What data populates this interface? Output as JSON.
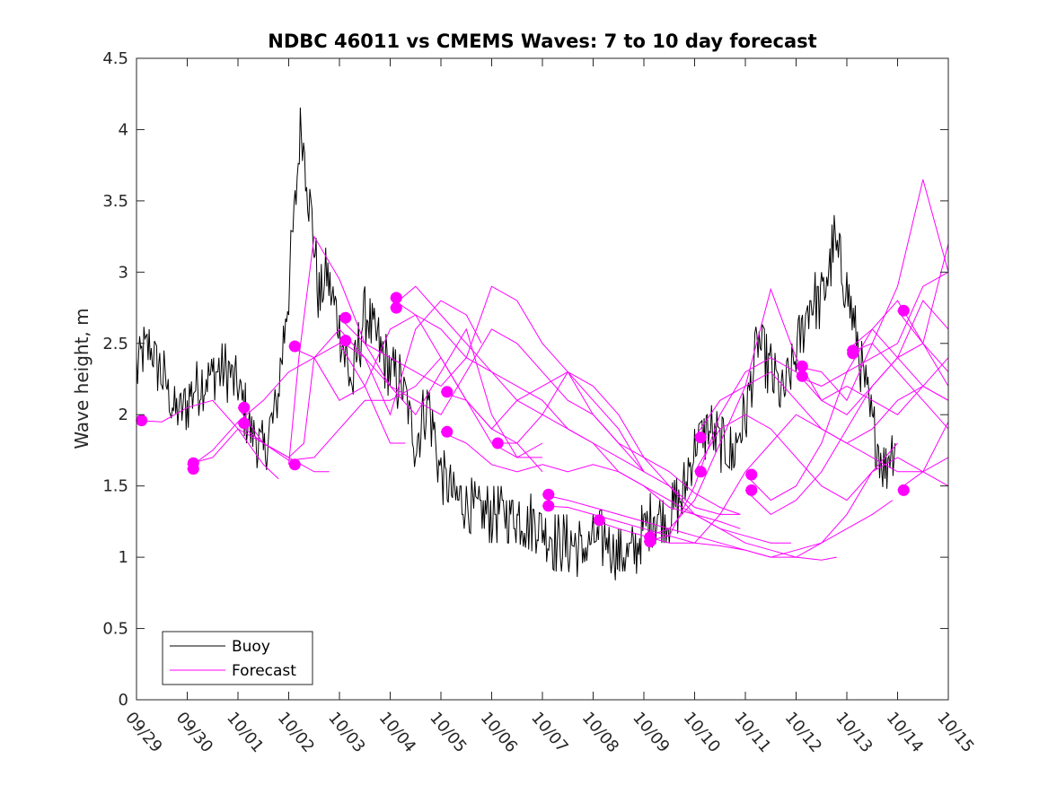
{
  "chart_data": {
    "type": "line",
    "title": "NDBC 46011 vs CMEMS Waves: 7 to 10 day forecast",
    "xlabel": "",
    "ylabel": "Wave height, m",
    "xlim": [
      0,
      16
    ],
    "ylim": [
      0,
      4.5
    ],
    "x_tick_labels": [
      "09/29",
      "09/30",
      "10/01",
      "10/02",
      "10/03",
      "10/04",
      "10/05",
      "10/06",
      "10/07",
      "10/08",
      "10/09",
      "10/10",
      "10/11",
      "10/12",
      "10/13",
      "10/14",
      "10/15"
    ],
    "y_tick_labels": [
      "0",
      "0.5",
      "1",
      "1.5",
      "2",
      "2.5",
      "3",
      "3.5",
      "4",
      "4.5"
    ],
    "y_ticks": [
      0,
      0.5,
      1,
      1.5,
      2,
      2.5,
      3,
      3.5,
      4,
      4.5
    ],
    "legend": {
      "position": "bottom-left",
      "entries": [
        "Buoy",
        "Forecast"
      ]
    },
    "colors": {
      "buoy": "#000000",
      "forecast": "#ff00ff"
    },
    "buoy": {
      "name": "Buoy",
      "x": [
        0.0,
        0.25,
        0.5,
        0.75,
        1.0,
        1.25,
        1.5,
        1.75,
        2.0,
        2.25,
        2.5,
        2.75,
        3.0,
        3.25,
        3.5,
        3.6,
        3.75,
        4.0,
        4.25,
        4.5,
        4.75,
        5.0,
        5.25,
        5.5,
        5.75,
        6.0,
        6.25,
        6.5,
        6.75,
        7.0,
        7.25,
        7.5,
        7.75,
        8.0,
        8.25,
        8.5,
        8.75,
        9.0,
        9.25,
        9.5,
        9.75,
        10.0,
        10.25,
        10.5,
        10.75,
        11.0,
        11.25,
        11.5,
        11.75,
        12.0,
        12.25,
        12.5,
        12.75,
        13.0,
        13.25,
        13.5,
        13.75,
        14.0,
        14.25,
        14.5,
        14.75,
        14.95
      ],
      "y": [
        2.3,
        2.5,
        2.3,
        2.0,
        2.1,
        2.2,
        2.3,
        2.3,
        2.2,
        1.9,
        1.75,
        2.0,
        2.9,
        4.05,
        3.2,
        2.8,
        3.0,
        2.6,
        2.2,
        2.7,
        2.5,
        2.3,
        2.2,
        1.8,
        2.1,
        1.6,
        1.4,
        1.4,
        1.3,
        1.3,
        1.3,
        1.3,
        1.25,
        1.2,
        1.1,
        1.1,
        1.05,
        1.1,
        1.15,
        1.0,
        1.0,
        1.2,
        1.3,
        1.3,
        1.4,
        1.8,
        1.9,
        1.8,
        1.7,
        2.0,
        2.5,
        2.3,
        2.1,
        2.4,
        2.8,
        2.8,
        3.2,
        2.9,
        2.4,
        1.9,
        1.65,
        1.8
      ]
    },
    "forecast": {
      "name": "Forecast",
      "series": [
        {
          "x": [
            0.0,
            0.5,
            1.0,
            1.5,
            2.0,
            2.5,
            2.8
          ],
          "y": [
            1.96,
            1.95,
            2.05,
            2.1,
            1.9,
            1.65,
            1.55
          ]
        },
        {
          "x": [
            1.0,
            1.5,
            2.0,
            2.5,
            3.0,
            3.5,
            3.8
          ],
          "y": [
            1.65,
            1.7,
            1.9,
            1.8,
            1.7,
            1.6,
            1.6
          ]
        },
        {
          "x": [
            1.0,
            1.5,
            2.0,
            2.5,
            3.0,
            3.5,
            4.0,
            4.5,
            5.0,
            5.3
          ],
          "y": [
            1.62,
            1.75,
            1.95,
            2.1,
            2.3,
            2.4,
            2.5,
            2.2,
            1.8,
            1.8
          ]
        },
        {
          "x": [
            2.0,
            2.5,
            3.0,
            3.3,
            3.5,
            4.0,
            4.5,
            5.0,
            5.5,
            6.0,
            6.5,
            6.8
          ],
          "y": [
            2.05,
            1.8,
            1.7,
            1.8,
            2.4,
            2.6,
            2.4,
            2.0,
            2.6,
            2.8,
            2.7,
            2.5
          ]
        },
        {
          "x": [
            2.0,
            2.5,
            3.0,
            3.5,
            4.0,
            4.5,
            5.0,
            5.5,
            6.0,
            6.5,
            7.0,
            7.5,
            8.0
          ],
          "y": [
            1.94,
            1.8,
            1.68,
            1.7,
            1.9,
            2.1,
            2.1,
            2.2,
            2.4,
            2.1,
            1.9,
            1.8,
            1.6
          ]
        },
        {
          "x": [
            3.0,
            3.2,
            3.5,
            4.0,
            4.5,
            5.0,
            5.5,
            6.0,
            6.5,
            7.0,
            7.5,
            8.0
          ],
          "y": [
            1.65,
            2.4,
            3.25,
            2.95,
            2.5,
            2.2,
            2.0,
            2.3,
            2.6,
            2.0,
            1.7,
            1.7
          ]
        },
        {
          "x": [
            3.0,
            3.5,
            4.0,
            4.5,
            5.0,
            5.5,
            6.0,
            6.5,
            7.0,
            7.5,
            8.0
          ],
          "y": [
            2.48,
            2.4,
            2.1,
            2.2,
            2.6,
            2.7,
            2.4,
            2.1,
            1.8,
            1.7,
            1.8
          ]
        },
        {
          "x": [
            4.0,
            4.5,
            5.0,
            5.5,
            6.0,
            6.5,
            7.0,
            7.5,
            8.0,
            8.5,
            9.0,
            9.5,
            10.0
          ],
          "y": [
            2.68,
            2.5,
            2.4,
            2.3,
            2.2,
            2.4,
            2.9,
            2.8,
            2.5,
            2.3,
            2.1,
            1.9,
            1.6
          ]
        },
        {
          "x": [
            4.0,
            4.5,
            5.0,
            5.5,
            6.0,
            6.5,
            7.0,
            7.5,
            8.0,
            8.5,
            9.0,
            9.5,
            10.0
          ],
          "y": [
            2.52,
            2.4,
            2.2,
            2.1,
            2.0,
            2.3,
            2.6,
            2.5,
            2.3,
            2.1,
            2.0,
            1.8,
            1.6
          ]
        },
        {
          "x": [
            5.0,
            5.5,
            6.0,
            6.5,
            7.0,
            7.5,
            8.0,
            8.5,
            9.0,
            9.5,
            10.0,
            10.5,
            11.0,
            11.5,
            11.9
          ],
          "y": [
            2.82,
            2.7,
            2.6,
            2.4,
            2.3,
            2.2,
            2.1,
            1.9,
            1.8,
            1.7,
            1.6,
            1.5,
            1.35,
            1.3,
            1.3
          ]
        },
        {
          "x": [
            5.0,
            5.5,
            6.0,
            6.5,
            7.0,
            7.5,
            8.0,
            8.5,
            9.0,
            9.5,
            10.0,
            10.5,
            11.0,
            11.5,
            11.9
          ],
          "y": [
            2.75,
            2.9,
            2.7,
            2.5,
            2.3,
            2.1,
            2.0,
            1.9,
            1.8,
            1.6,
            1.5,
            1.4,
            1.3,
            1.25,
            1.2
          ]
        },
        {
          "x": [
            6.0,
            6.5,
            7.0,
            7.5,
            8.0,
            8.5,
            9.0,
            9.5,
            10.0,
            10.5,
            11.0,
            11.5,
            11.9
          ],
          "y": [
            2.16,
            2.1,
            1.9,
            2.1,
            2.2,
            2.3,
            2.0,
            1.8,
            1.7,
            1.6,
            1.45,
            1.35,
            1.3
          ]
        },
        {
          "x": [
            6.0,
            6.5,
            7.0,
            7.5,
            8.0,
            8.5,
            9.0,
            9.5,
            10.0,
            10.5,
            11.0,
            11.5,
            12.0,
            12.5,
            12.9
          ],
          "y": [
            1.88,
            1.8,
            1.65,
            1.6,
            1.65,
            1.6,
            1.65,
            1.6,
            1.5,
            1.35,
            1.3,
            1.2,
            1.15,
            1.1,
            1.1
          ]
        },
        {
          "x": [
            7.0,
            7.5,
            8.0,
            8.5,
            9.0,
            9.5,
            10.0,
            10.5,
            11.0,
            11.5,
            12.0,
            12.5,
            13.0,
            13.5,
            13.8
          ],
          "y": [
            1.8,
            1.8,
            2.0,
            2.3,
            2.2,
            2.0,
            1.7,
            1.5,
            1.3,
            1.2,
            1.1,
            1.05,
            1.0,
            0.98,
            1.0
          ]
        },
        {
          "x": [
            8.0,
            8.5,
            9.0,
            9.5,
            10.0,
            10.5,
            11.0,
            11.5,
            12.0,
            12.5,
            13.0,
            13.5,
            14.0,
            14.5,
            14.9
          ],
          "y": [
            1.44,
            1.4,
            1.35,
            1.3,
            1.25,
            1.2,
            1.15,
            1.1,
            1.05,
            1.0,
            1.05,
            1.1,
            1.2,
            1.3,
            1.4
          ]
        },
        {
          "x": [
            8.0,
            8.5,
            9.0,
            9.5,
            10.0,
            10.5,
            11.0,
            11.5,
            12.0,
            12.5,
            13.0,
            13.5,
            14.0,
            14.5,
            15.0
          ],
          "y": [
            1.36,
            1.35,
            1.3,
            1.25,
            1.2,
            1.15,
            1.1,
            1.08,
            1.05,
            1.0,
            1.0,
            1.1,
            1.3,
            1.6,
            1.8
          ]
        },
        {
          "x": [
            9.0,
            9.5,
            10.0,
            10.5,
            11.0,
            11.5,
            12.0,
            12.5,
            13.0,
            13.5,
            14.0,
            14.5,
            15.0,
            15.5,
            16.0
          ],
          "y": [
            1.26,
            1.2,
            1.15,
            1.1,
            1.1,
            1.3,
            1.6,
            1.8,
            2.0,
            1.9,
            1.8,
            1.9,
            2.1,
            2.2,
            2.1
          ]
        },
        {
          "x": [
            10.0,
            10.5,
            11.0,
            11.5,
            12.0,
            12.5,
            13.0,
            13.5,
            14.0,
            14.5,
            15.0,
            15.5,
            16.0
          ],
          "y": [
            1.14,
            1.2,
            1.4,
            1.8,
            2.2,
            2.88,
            2.4,
            2.1,
            2.2,
            2.1,
            2.0,
            2.2,
            2.4
          ]
        },
        {
          "x": [
            10.0,
            10.5,
            11.0,
            11.5,
            12.0,
            12.5,
            13.0,
            13.5,
            14.0,
            14.5,
            15.0,
            15.5,
            16.0
          ],
          "y": [
            1.11,
            1.15,
            1.5,
            2.0,
            2.3,
            2.4,
            2.3,
            2.1,
            2.0,
            2.2,
            2.4,
            2.5,
            2.3
          ]
        },
        {
          "x": [
            11.0,
            11.5,
            12.0,
            12.5,
            13.0,
            13.5,
            14.0,
            14.5,
            15.0,
            15.5,
            16.0
          ],
          "y": [
            1.84,
            2.1,
            2.2,
            2.3,
            2.1,
            1.9,
            1.8,
            1.7,
            1.6,
            1.6,
            1.7
          ]
        },
        {
          "x": [
            11.0,
            11.5,
            12.0,
            12.5,
            13.0,
            13.5,
            14.0,
            14.5,
            15.0,
            15.5,
            16.0
          ],
          "y": [
            1.6,
            1.9,
            2.0,
            1.9,
            1.7,
            1.5,
            1.4,
            1.6,
            1.7,
            1.6,
            1.5
          ]
        },
        {
          "x": [
            12.0,
            12.5,
            13.0,
            13.5,
            14.0,
            14.5,
            15.0,
            15.5,
            16.0
          ],
          "y": [
            1.58,
            1.4,
            1.5,
            1.8,
            2.3,
            2.4,
            2.5,
            2.9,
            3.0
          ]
        },
        {
          "x": [
            12.0,
            12.5,
            13.0,
            13.5,
            14.0,
            14.5,
            15.0,
            15.5,
            16.0
          ],
          "y": [
            1.47,
            1.3,
            1.4,
            1.6,
            1.9,
            2.2,
            2.4,
            2.8,
            2.6
          ]
        },
        {
          "x": [
            13.0,
            13.5,
            14.0,
            14.5,
            15.0,
            15.5,
            16.0
          ],
          "y": [
            2.34,
            2.3,
            2.1,
            2.5,
            2.9,
            3.65,
            3.0
          ]
        },
        {
          "x": [
            13.0,
            13.5,
            14.0,
            14.5,
            15.0,
            15.5,
            16.0
          ],
          "y": [
            2.27,
            2.2,
            2.3,
            2.6,
            2.8,
            2.5,
            2.2
          ]
        },
        {
          "x": [
            14.0,
            14.5,
            15.0,
            15.5,
            16.0
          ],
          "y": [
            2.45,
            2.6,
            2.4,
            2.2,
            2.1
          ]
        },
        {
          "x": [
            14.0,
            14.5,
            15.0,
            15.5,
            16.0
          ],
          "y": [
            2.43,
            2.5,
            2.3,
            2.1,
            1.9
          ]
        },
        {
          "x": [
            15.0,
            15.5,
            16.0
          ],
          "y": [
            2.73,
            2.5,
            3.2
          ]
        },
        {
          "x": [
            15.0,
            15.5,
            16.0
          ],
          "y": [
            1.47,
            1.6,
            1.95
          ]
        }
      ]
    },
    "forecast_markers": {
      "x": [
        0.1,
        1.12,
        1.12,
        2.12,
        2.12,
        3.12,
        3.12,
        4.12,
        4.12,
        5.12,
        5.12,
        6.12,
        6.12,
        7.12,
        8.12,
        8.12,
        9.12,
        10.12,
        10.12,
        11.12,
        11.12,
        12.12,
        12.12,
        13.12,
        13.12,
        14.12,
        14.12,
        15.12,
        15.12
      ],
      "y": [
        1.96,
        1.66,
        1.62,
        2.05,
        1.94,
        2.48,
        1.65,
        2.68,
        2.52,
        2.82,
        2.75,
        2.16,
        1.88,
        1.8,
        1.44,
        1.36,
        1.26,
        1.14,
        1.11,
        1.84,
        1.6,
        1.58,
        1.47,
        2.34,
        2.27,
        2.45,
        2.43,
        2.73,
        1.47
      ]
    }
  }
}
